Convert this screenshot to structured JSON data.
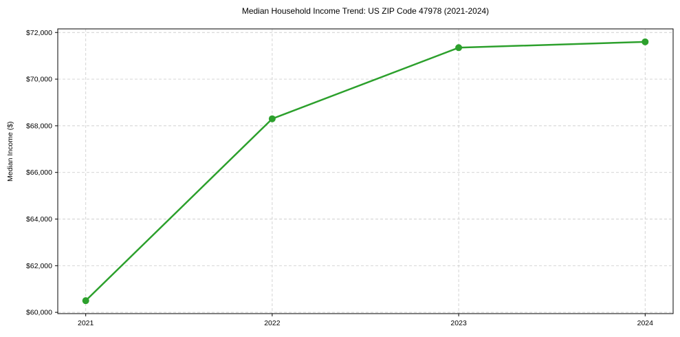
{
  "chart_data": {
    "type": "line",
    "title": "Median Household Income Trend: US ZIP Code 47978 (2021-2024)",
    "xlabel": "",
    "ylabel": "Median Income ($)",
    "categories": [
      2021,
      2022,
      2023,
      2024
    ],
    "values": [
      60500,
      68300,
      71350,
      71600
    ],
    "xtick_labels": [
      "2021",
      "2022",
      "2023",
      "2024"
    ],
    "yticks": [
      60000,
      62000,
      64000,
      66000,
      68000,
      70000,
      72000
    ],
    "ytick_labels": [
      "$60,000",
      "$62,000",
      "$64,000",
      "$66,000",
      "$68,000",
      "$70,000",
      "$72,000"
    ],
    "xlim": [
      2020.85,
      2024.15
    ],
    "ylim": [
      59945,
      72155
    ],
    "grid": true,
    "legend_position": "none",
    "line_color": "#2ca02c",
    "marker": "circle",
    "grid_color": "#cfcfcf",
    "spine_color": "#000000",
    "background_color": "#ffffff"
  }
}
